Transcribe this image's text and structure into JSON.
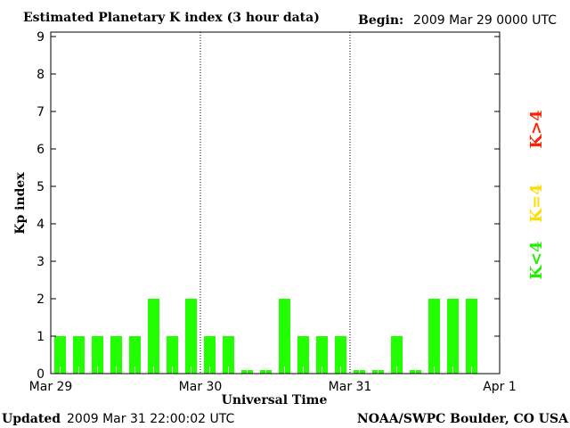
{
  "chart_data": {
    "type": "bar",
    "title": "Estimated Planetary K index (3 hour data)",
    "begin_label": "Begin:",
    "begin_value": "2009 Mar 29 0000 UTC",
    "xlabel": "Universal Time",
    "ylabel": "Kp index",
    "ylim": [
      0,
      9
    ],
    "yticks": [
      "0",
      "1",
      "2",
      "3",
      "4",
      "5",
      "6",
      "7",
      "8",
      "9"
    ],
    "xticks": [
      "Mar 29",
      "Mar 30",
      "Mar 31",
      "Apr 1"
    ],
    "slots": 24,
    "values": [
      1,
      1,
      1,
      1,
      1,
      2,
      1,
      2,
      1,
      1,
      0,
      0,
      2,
      1,
      1,
      1,
      0,
      0,
      1,
      0,
      2,
      2,
      2
    ],
    "bar_color": "#22ff00",
    "legend": [
      {
        "label": "K>4",
        "color": "#ff2200"
      },
      {
        "label": "K=4",
        "color": "#ffdd00"
      },
      {
        "label": "K<4",
        "color": "#22ee00"
      }
    ],
    "grid": "dotted day separators"
  },
  "footer": {
    "updated_label": "Updated",
    "updated_value": "2009 Mar 31 22:00:02 UTC",
    "source": "NOAA/SWPC Boulder, CO USA"
  }
}
